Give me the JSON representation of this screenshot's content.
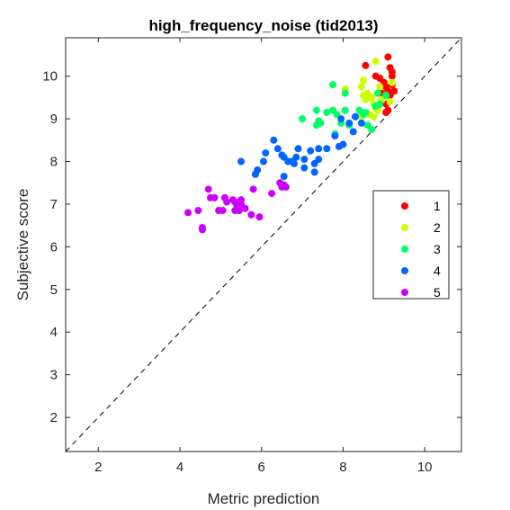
{
  "chart_data": {
    "type": "scatter",
    "title": "high_frequency_noise (tid2013)",
    "xlabel": "Metric prediction",
    "ylabel": "Subjective score",
    "xlim": [
      1.2,
      10.9
    ],
    "ylim": [
      1.2,
      10.9
    ],
    "xticks": [
      2,
      4,
      6,
      8,
      10
    ],
    "yticks": [
      2,
      3,
      4,
      5,
      6,
      7,
      8,
      9,
      10
    ],
    "grid": false,
    "legend_position": "right",
    "reference_line": "y = x (dashed)",
    "series": [
      {
        "name": "1",
        "color": "#ff0000",
        "points": [
          [
            9.1,
            10.45
          ],
          [
            9.15,
            10.2
          ],
          [
            9.2,
            10.1
          ],
          [
            8.55,
            10.25
          ],
          [
            8.8,
            10.0
          ],
          [
            8.9,
            9.95
          ],
          [
            9.0,
            9.85
          ],
          [
            9.05,
            9.75
          ],
          [
            9.1,
            9.65
          ],
          [
            9.2,
            9.8
          ],
          [
            9.25,
            9.65
          ],
          [
            9.15,
            9.55
          ],
          [
            8.95,
            9.45
          ],
          [
            9.05,
            9.35
          ],
          [
            8.85,
            9.3
          ],
          [
            9.1,
            9.2
          ],
          [
            9.05,
            9.15
          ],
          [
            8.95,
            9.6
          ],
          [
            9.2,
            10.0
          ]
        ]
      },
      {
        "name": "2",
        "color": "#ccff00",
        "points": [
          [
            8.8,
            10.35
          ],
          [
            8.05,
            9.7
          ],
          [
            8.45,
            9.75
          ],
          [
            8.5,
            9.55
          ],
          [
            8.6,
            9.6
          ],
          [
            8.55,
            9.45
          ],
          [
            8.7,
            9.5
          ],
          [
            8.75,
            9.35
          ],
          [
            8.8,
            9.25
          ],
          [
            8.85,
            9.2
          ],
          [
            8.65,
            9.1
          ],
          [
            8.75,
            9.05
          ],
          [
            8.95,
            9.45
          ],
          [
            9.05,
            9.55
          ],
          [
            9.15,
            9.4
          ],
          [
            9.2,
            9.85
          ],
          [
            8.45,
            9.05
          ],
          [
            8.9,
            9.75
          ],
          [
            8.5,
            9.9
          ]
        ]
      },
      {
        "name": "3",
        "color": "#00ff66",
        "points": [
          [
            7.75,
            9.8
          ],
          [
            8.05,
            9.2
          ],
          [
            7.35,
            9.2
          ],
          [
            7.6,
            9.15
          ],
          [
            7.75,
            9.2
          ],
          [
            7.85,
            9.1
          ],
          [
            7.4,
            8.95
          ],
          [
            7.45,
            8.9
          ],
          [
            7.35,
            8.85
          ],
          [
            7.8,
            8.65
          ],
          [
            7.95,
            8.9
          ],
          [
            8.15,
            8.85
          ],
          [
            8.3,
            9.05
          ],
          [
            8.4,
            9.2
          ],
          [
            8.5,
            9.1
          ],
          [
            8.6,
            8.85
          ],
          [
            8.7,
            8.75
          ],
          [
            8.8,
            9.3
          ],
          [
            8.9,
            9.35
          ],
          [
            8.85,
            9.6
          ],
          [
            9.05,
            9.55
          ],
          [
            7.0,
            9.0
          ],
          [
            8.05,
            9.6
          ],
          [
            8.55,
            9.15
          ]
        ]
      },
      {
        "name": "4",
        "color": "#0066ff",
        "points": [
          [
            6.3,
            8.5
          ],
          [
            6.4,
            8.3
          ],
          [
            6.9,
            8.3
          ],
          [
            7.2,
            8.25
          ],
          [
            7.4,
            8.3
          ],
          [
            7.6,
            8.3
          ],
          [
            7.8,
            8.6
          ],
          [
            7.9,
            8.35
          ],
          [
            8.0,
            8.4
          ],
          [
            8.15,
            8.9
          ],
          [
            8.25,
            8.7
          ],
          [
            8.45,
            8.9
          ],
          [
            7.95,
            9.0
          ],
          [
            8.3,
            9.05
          ],
          [
            6.1,
            8.2
          ],
          [
            6.05,
            8.0
          ],
          [
            6.5,
            8.15
          ],
          [
            6.55,
            8.1
          ],
          [
            6.65,
            8.0
          ],
          [
            6.75,
            8.0
          ],
          [
            6.8,
            7.95
          ],
          [
            6.85,
            8.1
          ],
          [
            7.05,
            7.85
          ],
          [
            7.3,
            7.95
          ],
          [
            7.4,
            8.05
          ],
          [
            7.05,
            8.05
          ],
          [
            5.9,
            7.8
          ],
          [
            5.85,
            7.7
          ],
          [
            5.5,
            8.0
          ],
          [
            6.55,
            7.65
          ],
          [
            7.3,
            7.75
          ]
        ]
      },
      {
        "name": "5",
        "color": "#cc00ff",
        "points": [
          [
            4.2,
            6.8
          ],
          [
            4.45,
            6.85
          ],
          [
            4.55,
            6.45
          ],
          [
            4.55,
            6.4
          ],
          [
            4.7,
            7.35
          ],
          [
            4.75,
            7.15
          ],
          [
            4.85,
            7.15
          ],
          [
            5.1,
            7.15
          ],
          [
            5.15,
            7.05
          ],
          [
            5.3,
            7.1
          ],
          [
            5.35,
            7.05
          ],
          [
            5.4,
            6.95
          ],
          [
            5.45,
            6.85
          ],
          [
            5.5,
            7.1
          ],
          [
            5.6,
            6.9
          ],
          [
            5.45,
            6.95
          ],
          [
            5.35,
            6.85
          ],
          [
            5.5,
            7.0
          ],
          [
            5.75,
            6.75
          ],
          [
            5.8,
            7.35
          ],
          [
            5.95,
            6.7
          ],
          [
            6.25,
            7.25
          ],
          [
            6.45,
            7.5
          ],
          [
            6.5,
            7.4
          ],
          [
            6.55,
            7.45
          ],
          [
            6.6,
            7.4
          ],
          [
            5.05,
            6.85
          ],
          [
            4.95,
            6.85
          ]
        ]
      }
    ]
  }
}
